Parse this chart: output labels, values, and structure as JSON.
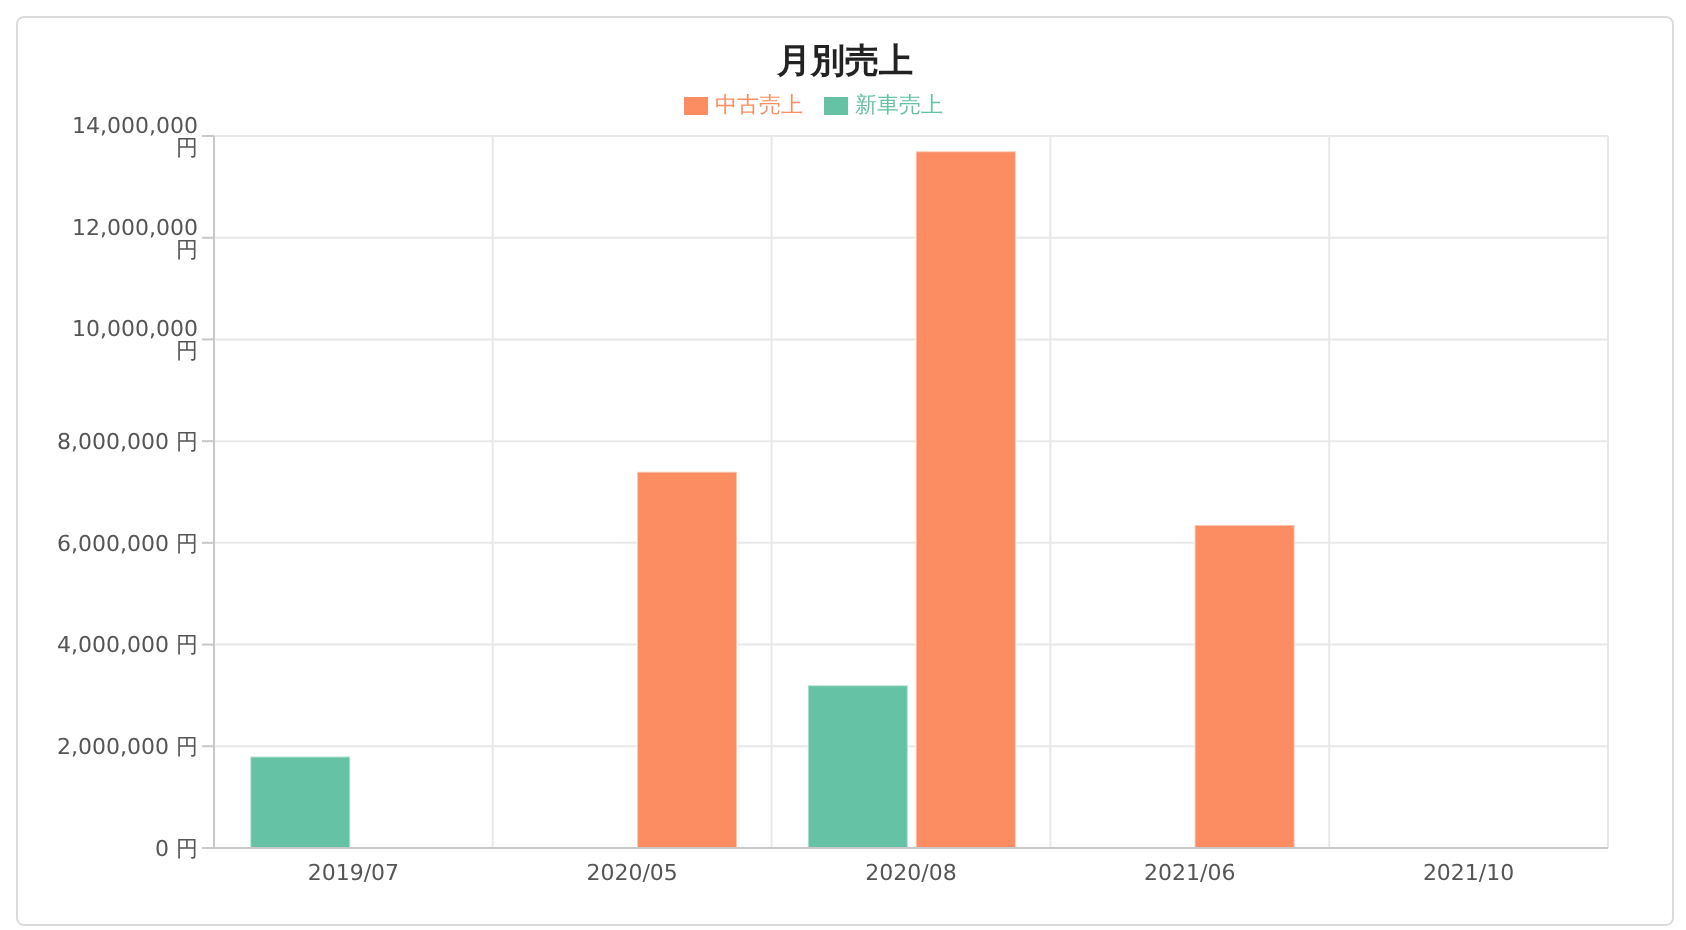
{
  "chart_data": {
    "type": "bar",
    "title": "月別売上",
    "categories": [
      "2019/07",
      "2020/05",
      "2020/08",
      "2021/06",
      "2021/10"
    ],
    "series": [
      {
        "name": "新車売上",
        "color": "#66c2a5",
        "values": [
          1800000,
          0,
          3200000,
          0,
          0
        ]
      },
      {
        "name": "中古売上",
        "color": "#fc8d62",
        "values": [
          0,
          7400000,
          13700000,
          6350000,
          0
        ]
      }
    ],
    "ylim": [
      0,
      14000000
    ],
    "yticks": [
      {
        "value": 0,
        "label": "0 円"
      },
      {
        "value": 2000000,
        "label": "2,000,000 円"
      },
      {
        "value": 4000000,
        "label": "4,000,000 円"
      },
      {
        "value": 6000000,
        "label": "6,000,000 円"
      },
      {
        "value": 8000000,
        "label": "8,000,000 円"
      },
      {
        "value": 10000000,
        "label": "10,000,000 円"
      },
      {
        "value": 12000000,
        "label": "12,000,000 円"
      },
      {
        "value": 14000000,
        "label": "14,000,000 円"
      }
    ],
    "grid": true,
    "legend": "top"
  }
}
